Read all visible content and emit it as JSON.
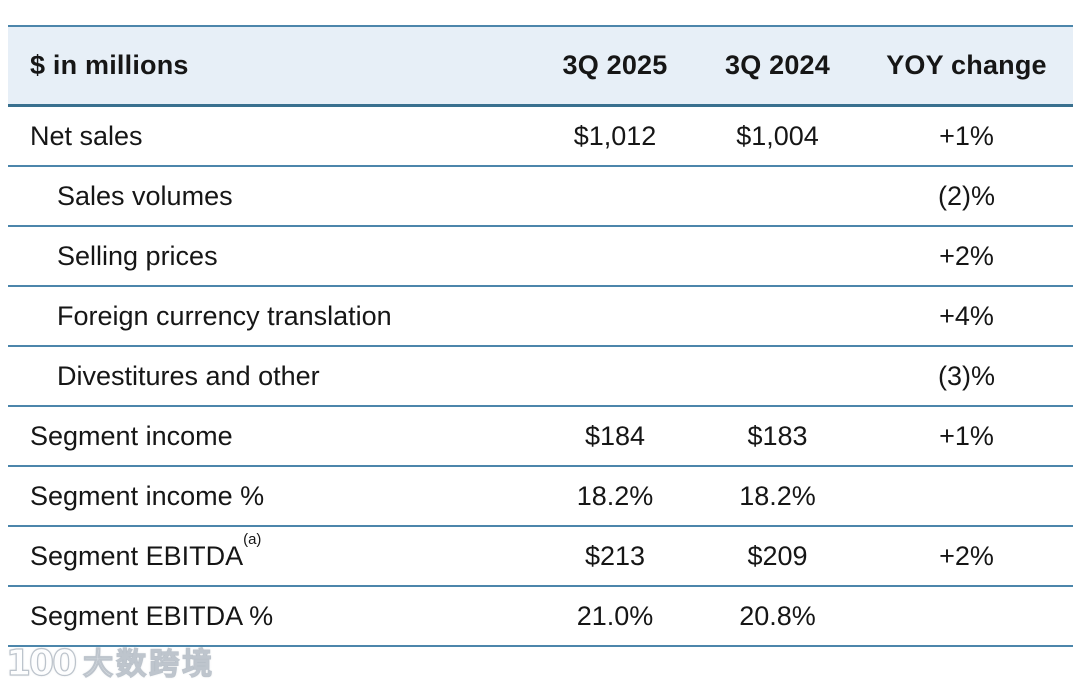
{
  "chart_data": {
    "type": "table",
    "columns": [
      "$ in millions",
      "3Q 2025",
      "3Q 2024",
      "YOY change"
    ],
    "rows": [
      {
        "label": "Net sales",
        "indent": false,
        "sup": "",
        "values": [
          "$1,012",
          "$1,004",
          "+1%"
        ]
      },
      {
        "label": "Sales volumes",
        "indent": true,
        "sup": "",
        "values": [
          "",
          "",
          "(2)%"
        ]
      },
      {
        "label": "Selling prices",
        "indent": true,
        "sup": "",
        "values": [
          "",
          "",
          "+2%"
        ]
      },
      {
        "label": "Foreign currency translation",
        "indent": true,
        "sup": "",
        "values": [
          "",
          "",
          "+4%"
        ]
      },
      {
        "label": "Divestitures and other",
        "indent": true,
        "sup": "",
        "values": [
          "",
          "",
          "(3)%"
        ]
      },
      {
        "label": "Segment income",
        "indent": false,
        "sup": "",
        "values": [
          "$184",
          "$183",
          "+1%"
        ]
      },
      {
        "label": "Segment income %",
        "indent": false,
        "sup": "",
        "values": [
          "18.2%",
          "18.2%",
          ""
        ]
      },
      {
        "label": "Segment EBITDA",
        "indent": false,
        "sup": "(a)",
        "values": [
          "$213",
          "$209",
          "+2%"
        ]
      },
      {
        "label": "Segment EBITDA %",
        "indent": false,
        "sup": "",
        "values": [
          "21.0%",
          "20.8%",
          ""
        ]
      }
    ]
  },
  "watermark": {
    "logo": "100",
    "text": "大数跨境"
  },
  "colors": {
    "header_bg": "#e7eff7",
    "row_bg": "#ffffff",
    "separator": "#4c86ab",
    "header_border": "#39708f",
    "text": "#161616"
  }
}
